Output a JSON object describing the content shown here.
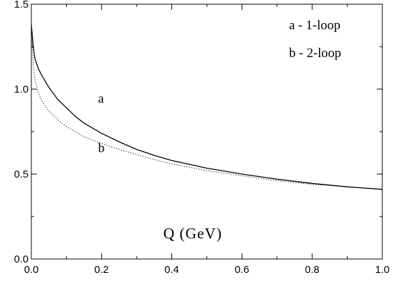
{
  "chart_data": {
    "type": "line",
    "title": "",
    "xlabel": "Q (GeV)",
    "ylabel": "",
    "xlim": [
      0.0,
      1.0
    ],
    "ylim": [
      0.0,
      1.5
    ],
    "x_ticks": [
      0.0,
      0.2,
      0.4,
      0.6,
      0.8,
      1.0
    ],
    "x_tick_labels": [
      "0.0",
      "0.2",
      "0.4",
      "0.6",
      "0.8",
      "1.0"
    ],
    "y_ticks": [
      0.0,
      0.5,
      1.0,
      1.5
    ],
    "y_tick_labels": [
      "0.0",
      "0.5",
      "1.0",
      "1.5"
    ],
    "grid": false,
    "legend": [
      "a - 1-loop",
      "b - 2-loop"
    ],
    "legend_position": "top-right",
    "series": [
      {
        "name": "a",
        "style": "solid",
        "x": [
          0.0,
          0.005,
          0.01,
          0.02,
          0.03,
          0.05,
          0.075,
          0.1,
          0.125,
          0.15,
          0.2,
          0.25,
          0.3,
          0.35,
          0.4,
          0.5,
          0.6,
          0.7,
          0.8,
          0.9,
          1.0
        ],
        "values": [
          1.38,
          1.26,
          1.18,
          1.12,
          1.08,
          1.01,
          0.94,
          0.89,
          0.84,
          0.8,
          0.74,
          0.69,
          0.645,
          0.61,
          0.58,
          0.535,
          0.5,
          0.47,
          0.445,
          0.425,
          0.41
        ]
      },
      {
        "name": "b",
        "style": "dotted",
        "x": [
          0.0,
          0.005,
          0.01,
          0.02,
          0.03,
          0.05,
          0.075,
          0.1,
          0.125,
          0.15,
          0.2,
          0.25,
          0.3,
          0.35,
          0.4,
          0.5,
          0.6,
          0.7,
          0.8,
          0.9,
          1.0
        ],
        "values": [
          1.38,
          1.15,
          1.06,
          0.98,
          0.93,
          0.87,
          0.82,
          0.78,
          0.75,
          0.72,
          0.68,
          0.645,
          0.615,
          0.585,
          0.56,
          0.52,
          0.49,
          0.46,
          0.44,
          0.425,
          0.41
        ]
      }
    ],
    "annotations": [
      {
        "text": "a",
        "x": 0.19,
        "y": 0.92
      },
      {
        "text": "b",
        "x": 0.19,
        "y": 0.63
      },
      {
        "text": "Q (GeV)",
        "x": 0.46,
        "y": 0.12
      }
    ]
  }
}
